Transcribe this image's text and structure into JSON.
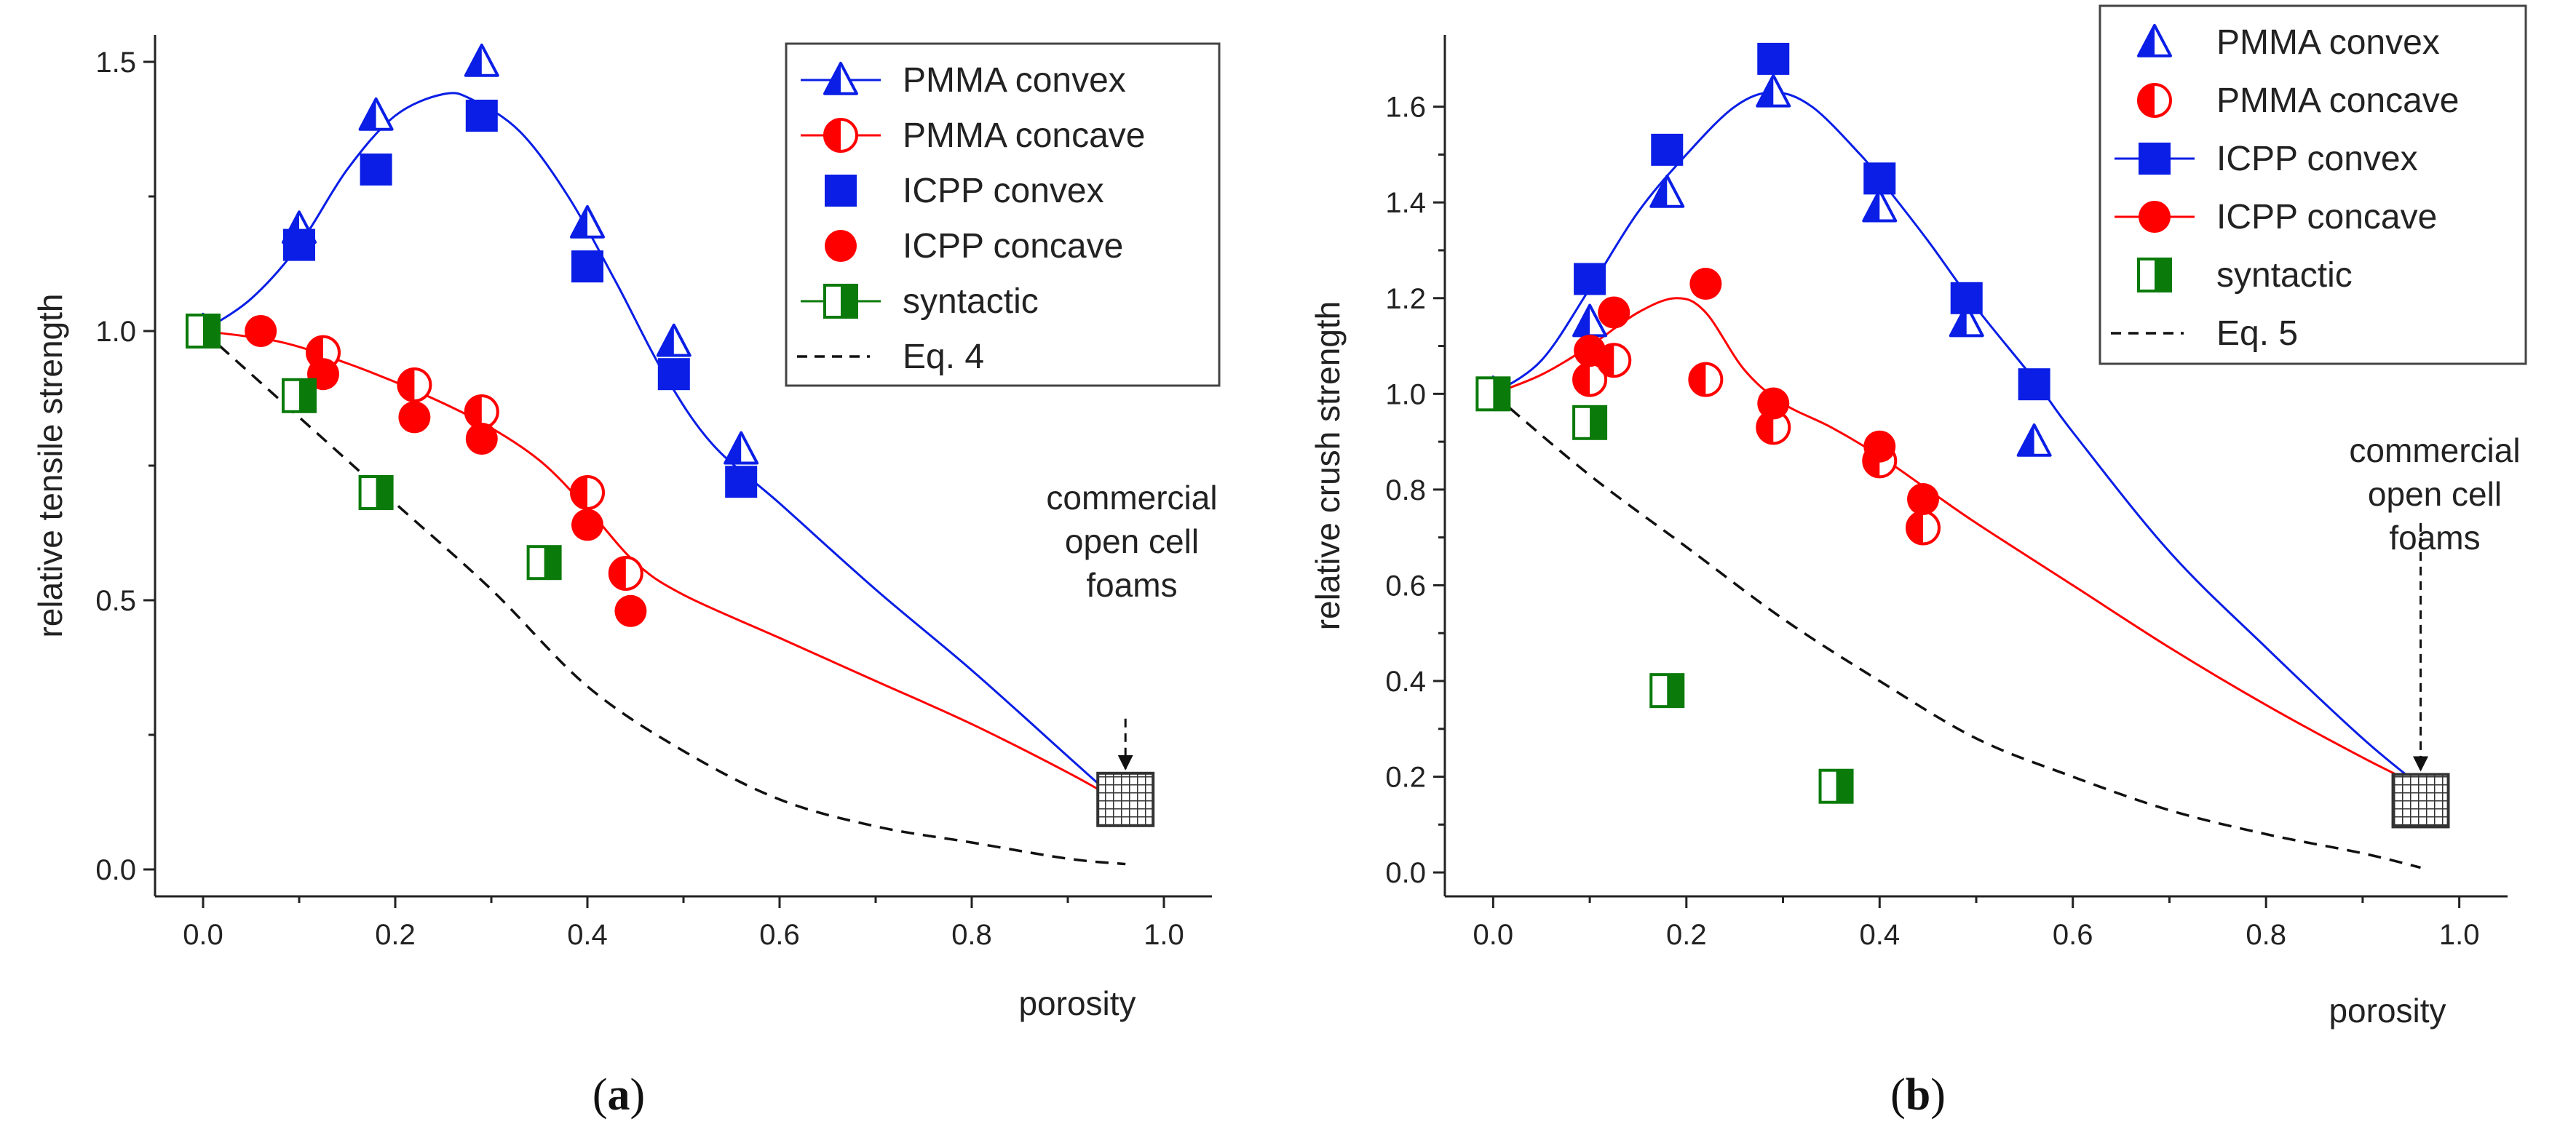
{
  "colors": {
    "blue": "#0a1ee6",
    "red": "#ff0000",
    "green": "#0a7a0a",
    "dash": "#111111",
    "axis": "#222222",
    "foam": "#444444"
  },
  "chart_data": [
    {
      "type": "scatter",
      "caption": "(a)",
      "caption_letter": "a",
      "title": "",
      "xlabel": "porosity",
      "ylabel": "relative tensile strength",
      "xlim": [
        -0.05,
        1.05
      ],
      "ylim": [
        -0.05,
        1.55
      ],
      "xticks": [
        0.0,
        0.2,
        0.4,
        0.6,
        0.8,
        1.0
      ],
      "xtick_labels": [
        "0.0",
        "0.2",
        "0.4",
        "0.6",
        "0.8",
        "1.0"
      ],
      "yticks": [
        0.0,
        0.5,
        1.0,
        1.5
      ],
      "ytick_labels": [
        "0.0",
        "0.5",
        "1.0",
        "1.5"
      ],
      "grid": false,
      "legend_position": "top-right",
      "legend": [
        {
          "label": "PMMA convex",
          "marker": "tri-half",
          "color": "blue",
          "line": true
        },
        {
          "label": "PMMA concave",
          "marker": "circle-half",
          "color": "red",
          "line": true
        },
        {
          "label": "ICPP convex",
          "marker": "square",
          "color": "blue",
          "line": false
        },
        {
          "label": "ICPP concave",
          "marker": "circle",
          "color": "red",
          "line": false
        },
        {
          "label": "syntactic",
          "marker": "square-half",
          "color": "green",
          "line": true
        },
        {
          "label": "Eq. 4",
          "marker": "none",
          "color": "dash",
          "line": "dashed"
        }
      ],
      "series": [
        {
          "name": "PMMA convex",
          "marker": "tri-half",
          "color": "blue",
          "points": [
            [
              0.0,
              1.0
            ],
            [
              0.1,
              1.19
            ],
            [
              0.18,
              1.4
            ],
            [
              0.29,
              1.5
            ],
            [
              0.4,
              1.2
            ],
            [
              0.49,
              0.98
            ],
            [
              0.56,
              0.78
            ]
          ]
        },
        {
          "name": "PMMA concave",
          "marker": "circle-half",
          "color": "red",
          "points": [
            [
              0.0,
              1.0
            ],
            [
              0.125,
              0.96
            ],
            [
              0.22,
              0.9
            ],
            [
              0.29,
              0.85
            ],
            [
              0.4,
              0.7
            ],
            [
              0.44,
              0.55
            ]
          ]
        },
        {
          "name": "ICPP convex",
          "marker": "square",
          "color": "blue",
          "points": [
            [
              0.1,
              1.16
            ],
            [
              0.18,
              1.3
            ],
            [
              0.29,
              1.4
            ],
            [
              0.4,
              1.12
            ],
            [
              0.49,
              0.92
            ],
            [
              0.56,
              0.72
            ]
          ]
        },
        {
          "name": "ICPP concave",
          "marker": "circle",
          "color": "red",
          "points": [
            [
              0.06,
              1.0
            ],
            [
              0.125,
              0.92
            ],
            [
              0.22,
              0.84
            ],
            [
              0.29,
              0.8
            ],
            [
              0.4,
              0.64
            ],
            [
              0.445,
              0.48
            ]
          ]
        },
        {
          "name": "syntactic",
          "marker": "square-half",
          "color": "green",
          "points": [
            [
              0.0,
              1.0
            ],
            [
              0.1,
              0.88
            ],
            [
              0.18,
              0.7
            ],
            [
              0.355,
              0.57
            ]
          ]
        }
      ],
      "curves": [
        {
          "name": "PMMA convex fit",
          "color": "blue",
          "style": "solid",
          "points": [
            [
              0.0,
              1.0
            ],
            [
              0.05,
              1.06
            ],
            [
              0.1,
              1.16
            ],
            [
              0.15,
              1.3
            ],
            [
              0.2,
              1.4
            ],
            [
              0.25,
              1.44
            ],
            [
              0.28,
              1.43
            ],
            [
              0.33,
              1.37
            ],
            [
              0.38,
              1.25
            ],
            [
              0.43,
              1.09
            ],
            [
              0.48,
              0.92
            ],
            [
              0.53,
              0.79
            ],
            [
              0.6,
              0.68
            ],
            [
              0.7,
              0.52
            ],
            [
              0.8,
              0.37
            ],
            [
              0.9,
              0.21
            ],
            [
              0.95,
              0.13
            ]
          ]
        },
        {
          "name": "PMMA concave fit",
          "color": "red",
          "style": "solid",
          "points": [
            [
              0.0,
              1.0
            ],
            [
              0.08,
              0.98
            ],
            [
              0.15,
              0.94
            ],
            [
              0.22,
              0.89
            ],
            [
              0.29,
              0.83
            ],
            [
              0.35,
              0.76
            ],
            [
              0.4,
              0.67
            ],
            [
              0.45,
              0.57
            ],
            [
              0.5,
              0.51
            ],
            [
              0.6,
              0.43
            ],
            [
              0.7,
              0.35
            ],
            [
              0.8,
              0.27
            ],
            [
              0.9,
              0.18
            ],
            [
              0.95,
              0.13
            ]
          ]
        },
        {
          "name": "Eq. 4",
          "color": "dash",
          "style": "dashed",
          "points": [
            [
              0.0,
              1.0
            ],
            [
              0.1,
              0.84
            ],
            [
              0.2,
              0.68
            ],
            [
              0.3,
              0.52
            ],
            [
              0.4,
              0.34
            ],
            [
              0.5,
              0.22
            ],
            [
              0.6,
              0.13
            ],
            [
              0.7,
              0.08
            ],
            [
              0.8,
              0.05
            ],
            [
              0.9,
              0.02
            ],
            [
              0.96,
              0.01
            ]
          ]
        }
      ],
      "annotation": {
        "lines": [
          "commercial",
          "open cell",
          "foams"
        ],
        "point": [
          0.96,
          0.13
        ],
        "arrow_from": [
          0.96,
          0.28
        ]
      }
    },
    {
      "type": "scatter",
      "caption": "(b)",
      "caption_letter": "b",
      "title": "",
      "xlabel": "porosity",
      "ylabel": "relative crush strength",
      "xlim": [
        -0.05,
        1.05
      ],
      "ylim": [
        -0.05,
        1.75
      ],
      "xticks": [
        0.0,
        0.2,
        0.4,
        0.6,
        0.8,
        1.0
      ],
      "xtick_labels": [
        "0.0",
        "0.2",
        "0.4",
        "0.6",
        "0.8",
        "1.0"
      ],
      "yticks": [
        0.0,
        0.2,
        0.4,
        0.6,
        0.8,
        1.0,
        1.2,
        1.4,
        1.6
      ],
      "ytick_labels": [
        "0.0",
        "0.2",
        "0.4",
        "0.6",
        "0.8",
        "1.0",
        "1.2",
        "1.4",
        "1.6"
      ],
      "grid": false,
      "legend_position": "top-right",
      "legend": [
        {
          "label": "PMMA convex",
          "marker": "tri-half",
          "color": "blue",
          "line": false
        },
        {
          "label": "PMMA concave",
          "marker": "circle-half",
          "color": "red",
          "line": false
        },
        {
          "label": "ICPP convex",
          "marker": "square",
          "color": "blue",
          "line": true
        },
        {
          "label": "ICPP concave",
          "marker": "circle",
          "color": "red",
          "line": true
        },
        {
          "label": "syntactic",
          "marker": "square-half",
          "color": "green",
          "line": false
        },
        {
          "label": "Eq. 5",
          "marker": "none",
          "color": "dash",
          "line": "dashed"
        }
      ],
      "series": [
        {
          "name": "PMMA convex",
          "marker": "tri-half",
          "color": "blue",
          "points": [
            [
              0.0,
              1.0
            ],
            [
              0.1,
              1.15
            ],
            [
              0.18,
              1.42
            ],
            [
              0.29,
              1.63
            ],
            [
              0.4,
              1.39
            ],
            [
              0.49,
              1.15
            ],
            [
              0.56,
              0.9
            ]
          ]
        },
        {
          "name": "PMMA concave",
          "marker": "circle-half",
          "color": "red",
          "points": [
            [
              0.1,
              1.03
            ],
            [
              0.125,
              1.07
            ],
            [
              0.22,
              1.03
            ],
            [
              0.29,
              0.93
            ],
            [
              0.4,
              0.86
            ],
            [
              0.445,
              0.72
            ]
          ]
        },
        {
          "name": "ICPP convex",
          "marker": "square",
          "color": "blue",
          "points": [
            [
              0.0,
              1.0
            ],
            [
              0.1,
              1.24
            ],
            [
              0.18,
              1.51
            ],
            [
              0.29,
              1.7
            ],
            [
              0.4,
              1.45
            ],
            [
              0.49,
              1.2
            ],
            [
              0.56,
              1.02
            ]
          ]
        },
        {
          "name": "ICPP concave",
          "marker": "circle",
          "color": "red",
          "points": [
            [
              0.1,
              1.09
            ],
            [
              0.125,
              1.17
            ],
            [
              0.22,
              1.23
            ],
            [
              0.29,
              0.98
            ],
            [
              0.4,
              0.89
            ],
            [
              0.445,
              0.78
            ]
          ]
        },
        {
          "name": "syntactic",
          "marker": "square-half",
          "color": "green",
          "points": [
            [
              0.0,
              1.0
            ],
            [
              0.1,
              0.94
            ],
            [
              0.18,
              0.38
            ],
            [
              0.355,
              0.18
            ]
          ]
        }
      ],
      "curves": [
        {
          "name": "ICPP convex fit",
          "color": "blue",
          "style": "solid",
          "points": [
            [
              0.0,
              1.0
            ],
            [
              0.05,
              1.07
            ],
            [
              0.1,
              1.22
            ],
            [
              0.15,
              1.38
            ],
            [
              0.2,
              1.5
            ],
            [
              0.25,
              1.6
            ],
            [
              0.29,
              1.63
            ],
            [
              0.33,
              1.6
            ],
            [
              0.38,
              1.5
            ],
            [
              0.4,
              1.45
            ],
            [
              0.45,
              1.32
            ],
            [
              0.5,
              1.18
            ],
            [
              0.56,
              1.03
            ],
            [
              0.6,
              0.92
            ],
            [
              0.7,
              0.67
            ],
            [
              0.8,
              0.47
            ],
            [
              0.9,
              0.28
            ],
            [
              0.96,
              0.18
            ]
          ]
        },
        {
          "name": "ICPP concave fit",
          "color": "red",
          "style": "solid",
          "points": [
            [
              0.0,
              1.0
            ],
            [
              0.05,
              1.04
            ],
            [
              0.1,
              1.1
            ],
            [
              0.15,
              1.17
            ],
            [
              0.19,
              1.2
            ],
            [
              0.22,
              1.17
            ],
            [
              0.26,
              1.05
            ],
            [
              0.3,
              0.98
            ],
            [
              0.35,
              0.93
            ],
            [
              0.4,
              0.87
            ],
            [
              0.45,
              0.8
            ],
            [
              0.5,
              0.73
            ],
            [
              0.6,
              0.6
            ],
            [
              0.7,
              0.47
            ],
            [
              0.8,
              0.35
            ],
            [
              0.9,
              0.24
            ],
            [
              0.96,
              0.18
            ]
          ]
        },
        {
          "name": "Eq. 5",
          "color": "dash",
          "style": "dashed",
          "points": [
            [
              0.0,
              1.0
            ],
            [
              0.1,
              0.83
            ],
            [
              0.2,
              0.68
            ],
            [
              0.3,
              0.53
            ],
            [
              0.4,
              0.4
            ],
            [
              0.5,
              0.28
            ],
            [
              0.6,
              0.2
            ],
            [
              0.7,
              0.13
            ],
            [
              0.8,
              0.08
            ],
            [
              0.9,
              0.04
            ],
            [
              0.96,
              0.01
            ]
          ]
        }
      ],
      "annotation": {
        "lines": [
          "commercial",
          "open cell",
          "foams"
        ],
        "point": [
          0.96,
          0.15
        ],
        "arrow_from": [
          0.96,
          0.73
        ]
      }
    }
  ]
}
